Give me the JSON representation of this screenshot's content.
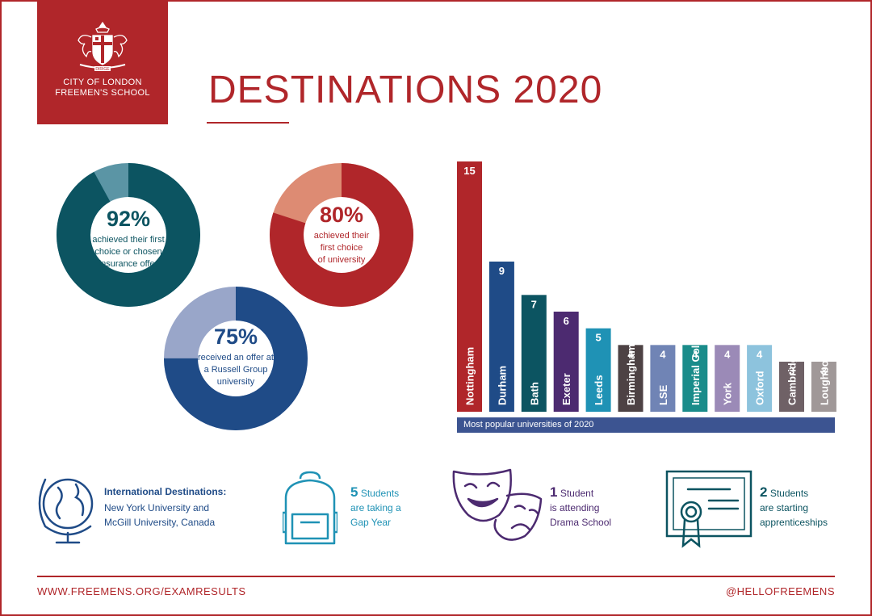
{
  "logo": {
    "motto": "DIRIGE",
    "line1": "CITY OF LONDON",
    "line2": "FREEMEN'S SCHOOL"
  },
  "title": "DESTINATIONS 2020",
  "donuts": [
    {
      "value": 92,
      "pct": "92%",
      "text": [
        "achieved their first",
        "choice or chosen",
        "insurance offer"
      ],
      "color": "#0c5461",
      "rest_color": "#5b95a5",
      "text_color": "#0c5461"
    },
    {
      "value": 80,
      "pct": "80%",
      "text": [
        "achieved their",
        "first choice",
        "of university"
      ],
      "color": "#b0262a",
      "rest_color": "#dd8b73",
      "text_color": "#b0262a"
    },
    {
      "value": 75,
      "pct": "75%",
      "text": [
        "received an offer at",
        "a Russell Group",
        "university"
      ],
      "color": "#1f4b87",
      "rest_color": "#99a6c9",
      "text_color": "#1f4b87"
    }
  ],
  "chart_data": {
    "type": "bar",
    "title": "Most popular universities of 2020",
    "categories": [
      "Nottingham",
      "Durham",
      "Bath",
      "Exeter",
      "Leeds",
      "Birmingham",
      "LSE",
      "Imperial College",
      "York",
      "Oxford",
      "Cambridge",
      "Loughborough"
    ],
    "values": [
      15,
      9,
      7,
      6,
      5,
      4,
      4,
      4,
      4,
      4,
      3,
      3
    ],
    "colors": [
      "#b0262a",
      "#1f4b87",
      "#0c5461",
      "#4c2a70",
      "#1f92b5",
      "#4d4244",
      "#7084b5",
      "#1a8c8a",
      "#9b8ab7",
      "#8dc3dd",
      "#6f6166",
      "#a09898"
    ],
    "ylim": [
      0,
      15
    ]
  },
  "facts": [
    {
      "icon": "globe-icon",
      "heading": "International Destinations:",
      "lines": [
        "New York University and",
        "McGill University, Canada"
      ],
      "color": "#1f4b87"
    },
    {
      "icon": "backpack-icon",
      "number": "5",
      "lines": [
        "Students",
        "are taking a",
        "Gap Year"
      ],
      "color": "#1f92b5"
    },
    {
      "icon": "theatre-masks-icon",
      "number": "1",
      "lines": [
        "Student",
        "is attending",
        "Drama School"
      ],
      "color": "#4c2a70"
    },
    {
      "icon": "certificate-icon",
      "number": "2",
      "lines": [
        "Students",
        "are starting",
        "apprenticeships"
      ],
      "color": "#0c5461"
    }
  ],
  "footer": {
    "left": "WWW.FREEMENS.ORG/EXAMRESULTS",
    "right": "@HELLOFREEMENS"
  }
}
